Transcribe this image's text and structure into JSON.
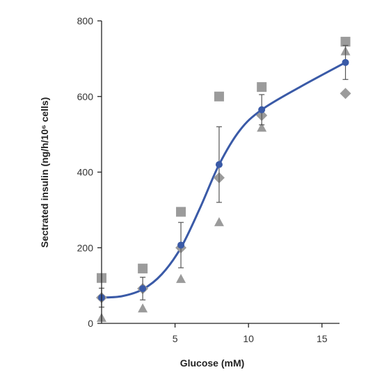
{
  "chart_data": {
    "type": "scatter",
    "title": "",
    "xlabel": "Glucose (mM)",
    "ylabel": "Sectrated insulin (ng/h/10⁶ cells)",
    "xlim": [
      0,
      17
    ],
    "ylim": [
      0,
      800
    ],
    "grid": false,
    "x_ticks": [
      {
        "value": 5,
        "label": "5"
      },
      {
        "value": 10,
        "label": "10"
      },
      {
        "value": 15,
        "label": "15"
      }
    ],
    "y_ticks": [
      {
        "value": 0,
        "label": "0"
      },
      {
        "value": 200,
        "label": "200"
      },
      {
        "value": 400,
        "label": "400"
      },
      {
        "value": 600,
        "label": "600"
      },
      {
        "value": 800,
        "label": "800"
      }
    ],
    "series": [
      {
        "marker": "square",
        "color": "#9b9b9b",
        "points": [
          [
            0,
            120
          ],
          [
            2.8,
            145
          ],
          [
            5.4,
            295
          ],
          [
            8,
            600
          ],
          [
            10.9,
            625
          ],
          [
            16.6,
            745
          ]
        ]
      },
      {
        "marker": "diamond",
        "color": "#9b9b9b",
        "points": [
          [
            0,
            68
          ],
          [
            2.8,
            92
          ],
          [
            5.4,
            200
          ],
          [
            8,
            385
          ],
          [
            10.9,
            550
          ],
          [
            16.6,
            608
          ]
        ]
      },
      {
        "marker": "triangle",
        "color": "#9b9b9b",
        "points": [
          [
            0,
            15
          ],
          [
            2.8,
            40
          ],
          [
            5.4,
            118
          ],
          [
            8,
            268
          ],
          [
            10.9,
            518
          ],
          [
            16.6,
            720
          ]
        ]
      },
      {
        "marker": "circle",
        "color": "#3a5aa7",
        "points": [
          [
            0,
            68
          ],
          [
            2.8,
            92
          ],
          [
            5.4,
            207
          ],
          [
            8,
            420
          ],
          [
            10.9,
            565
          ],
          [
            16.6,
            690
          ]
        ],
        "error": [
          25,
          30,
          60,
          100,
          40,
          45
        ]
      }
    ],
    "fit_curve": {
      "color": "#3a5aa7",
      "points": [
        [
          0,
          68
        ],
        [
          1.4,
          72
        ],
        [
          2.8,
          90
        ],
        [
          4.1,
          130
        ],
        [
          5.4,
          200
        ],
        [
          6.7,
          305
        ],
        [
          8,
          420
        ],
        [
          9.4,
          510
        ],
        [
          10.9,
          565
        ],
        [
          13.5,
          625
        ],
        [
          16.6,
          690
        ]
      ]
    }
  }
}
